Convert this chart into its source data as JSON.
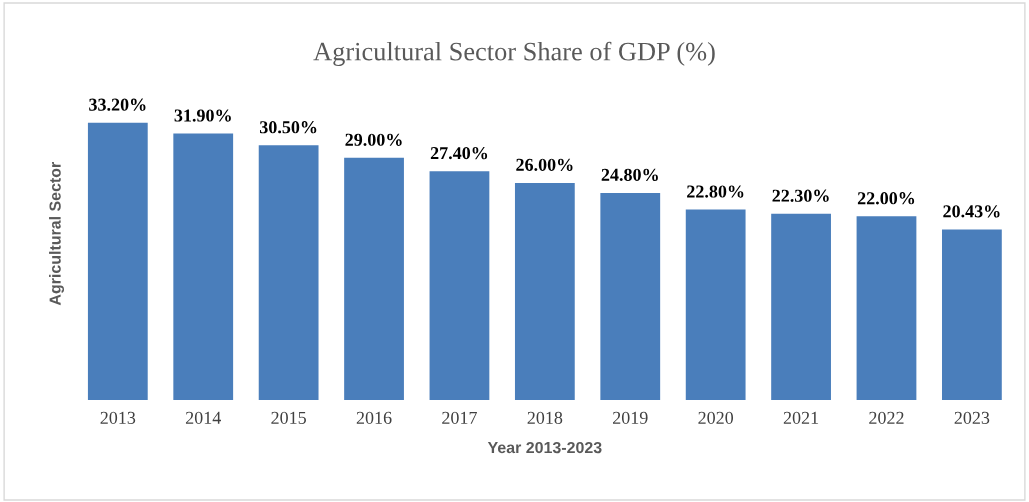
{
  "chart_data": {
    "type": "bar",
    "title": "Agricultural Sector Share of GDP (%)",
    "xlabel": "Year 2013-2023",
    "ylabel": "Agricultural Sector",
    "categories": [
      "2013",
      "2014",
      "2015",
      "2016",
      "2017",
      "2018",
      "2019",
      "2020",
      "2021",
      "2022",
      "2023"
    ],
    "values": [
      33.2,
      31.9,
      30.5,
      29.0,
      27.4,
      26.0,
      24.8,
      22.8,
      22.3,
      22.0,
      20.43
    ],
    "value_labels": [
      "33.20%",
      "31.90%",
      "30.50%",
      "29.00%",
      "27.40%",
      "26.00%",
      "24.80%",
      "22.80%",
      "22.30%",
      "22.00%",
      "20.43%"
    ],
    "color": "#4a7ebb",
    "relative": false,
    "grid": false,
    "legend": false
  }
}
